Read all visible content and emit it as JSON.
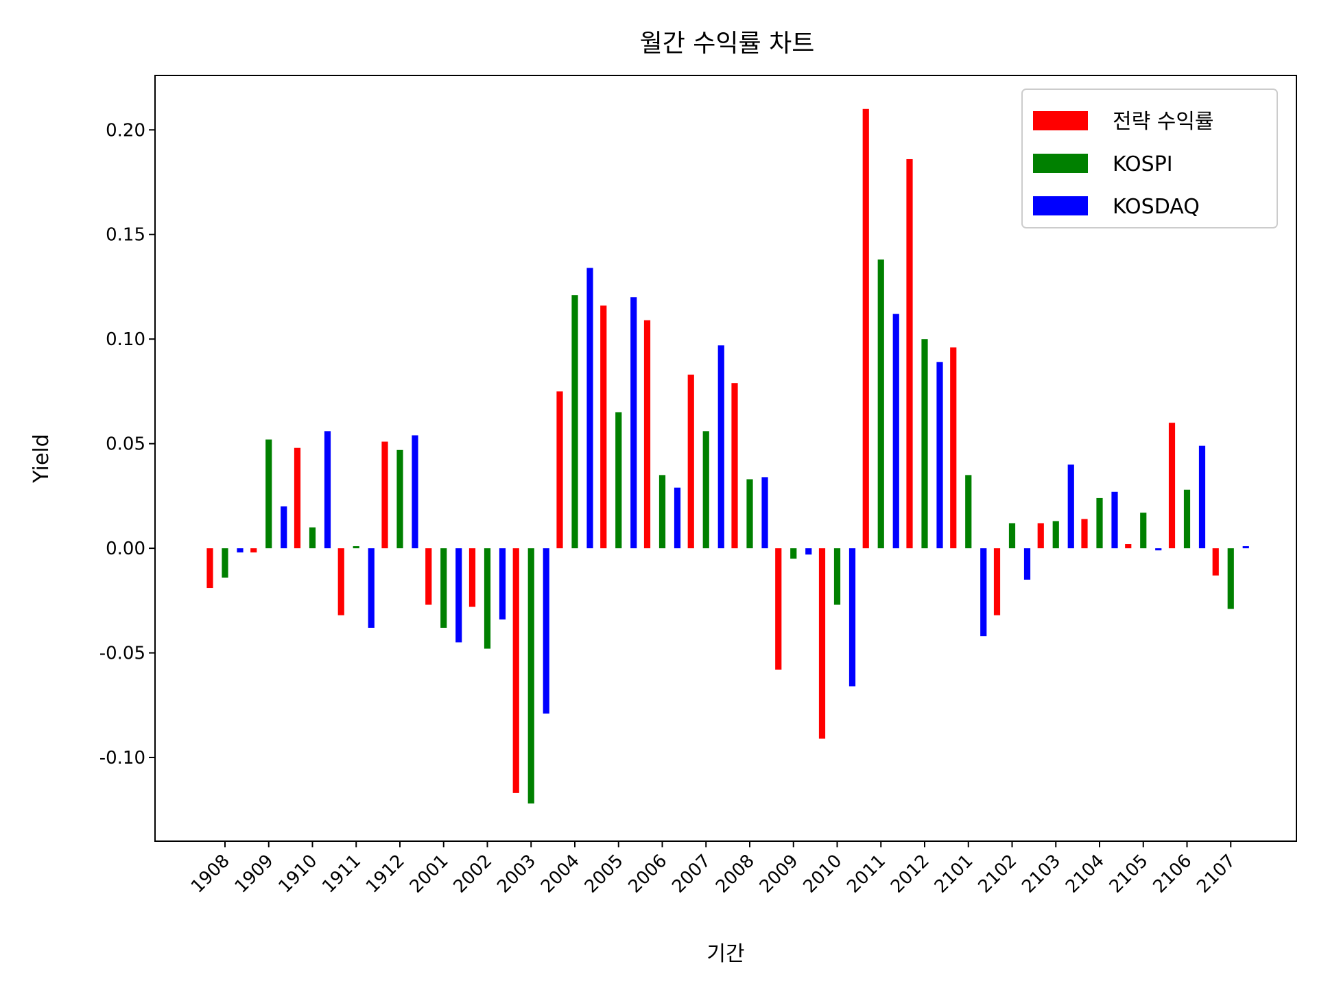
{
  "chart_data": {
    "type": "bar",
    "title": "월간 수익률 차트",
    "xlabel": "기간",
    "ylabel": "Yield",
    "ylim": [
      -0.14,
      0.226
    ],
    "yticks": [
      -0.1,
      -0.05,
      0.0,
      0.05,
      0.1,
      0.15,
      0.2
    ],
    "ytick_labels": [
      "-0.10",
      "-0.05",
      "0.00",
      "0.05",
      "0.10",
      "0.15",
      "0.20"
    ],
    "grid": false,
    "legend_position": "top-right",
    "categories": [
      "1908",
      "1909",
      "1910",
      "1911",
      "1912",
      "2001",
      "2002",
      "2003",
      "2004",
      "2005",
      "2006",
      "2007",
      "2008",
      "2009",
      "2010",
      "2011",
      "2012",
      "2101",
      "2102",
      "2103",
      "2104",
      "2105",
      "2106",
      "2107"
    ],
    "series": [
      {
        "name": "전략 수익률",
        "color": "#ff0000",
        "values": [
          -0.019,
          -0.002,
          0.048,
          -0.032,
          0.051,
          -0.027,
          -0.028,
          -0.117,
          0.075,
          0.116,
          0.109,
          0.083,
          0.079,
          -0.058,
          -0.091,
          0.21,
          0.186,
          0.096,
          -0.032,
          0.012,
          0.014,
          0.002,
          0.06,
          -0.013
        ]
      },
      {
        "name": "KOSPI",
        "color": "#008000",
        "values": [
          -0.014,
          0.052,
          0.01,
          0.001,
          0.047,
          -0.038,
          -0.048,
          -0.122,
          0.121,
          0.065,
          0.035,
          0.056,
          0.033,
          -0.005,
          -0.027,
          0.138,
          0.1,
          0.035,
          0.012,
          0.013,
          0.024,
          0.017,
          0.028,
          -0.029
        ]
      },
      {
        "name": "KOSDAQ",
        "color": "#0000ff",
        "values": [
          -0.002,
          0.02,
          0.056,
          -0.038,
          0.054,
          -0.045,
          -0.034,
          -0.079,
          0.134,
          0.12,
          0.029,
          0.097,
          0.034,
          -0.003,
          -0.066,
          0.112,
          0.089,
          -0.042,
          -0.015,
          0.04,
          0.027,
          -0.001,
          0.049,
          0.001
        ]
      }
    ]
  }
}
